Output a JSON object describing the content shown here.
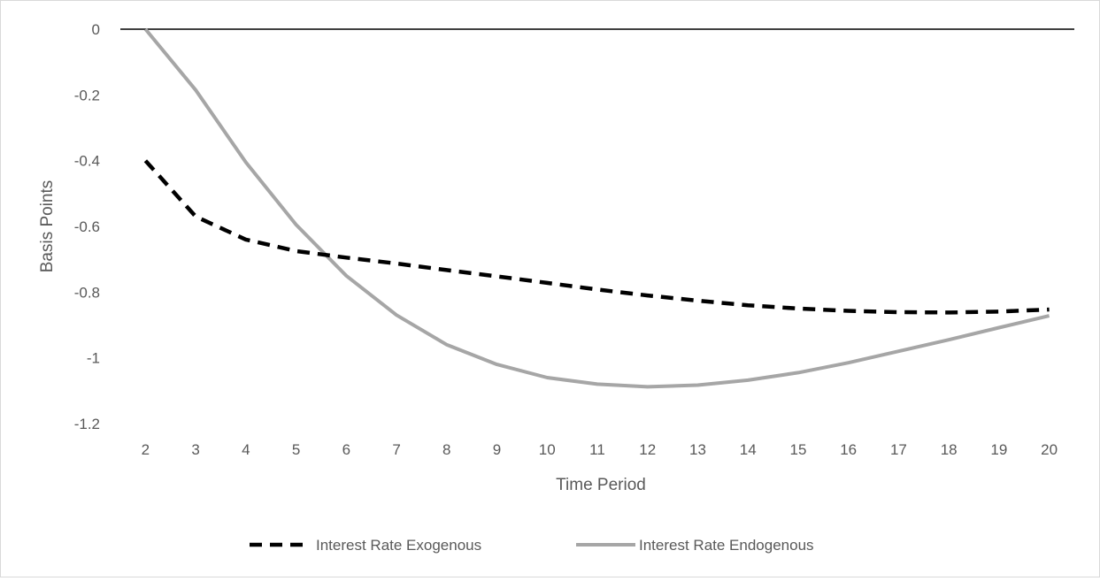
{
  "chart_data": {
    "type": "line",
    "title": "",
    "xlabel": "Time Period",
    "ylabel": "Basis Points",
    "x": [
      2,
      3,
      4,
      5,
      6,
      7,
      8,
      9,
      10,
      11,
      12,
      13,
      14,
      15,
      16,
      17,
      18,
      19,
      20
    ],
    "ylim": [
      -1.2,
      0
    ],
    "yticks": [
      "0",
      "-0.2",
      "-0.4",
      "-0.6",
      "-0.8",
      "-1",
      "-1.2"
    ],
    "ytick_values": [
      0,
      -0.2,
      -0.4,
      -0.6,
      -0.8,
      -1,
      -1.2
    ],
    "grid": false,
    "legend_position": "bottom",
    "series": [
      {
        "name": "Interest Rate Exogenous",
        "style": "dashed",
        "color": "#000000",
        "values": [
          -0.4,
          -0.57,
          -0.64,
          -0.675,
          -0.695,
          -0.713,
          -0.733,
          -0.752,
          -0.772,
          -0.792,
          -0.81,
          -0.826,
          -0.84,
          -0.85,
          -0.857,
          -0.861,
          -0.862,
          -0.859,
          -0.853
        ]
      },
      {
        "name": "Interest Rate Endogenous",
        "style": "solid",
        "color": "#a6a6a6",
        "values": [
          0.0,
          -0.185,
          -0.405,
          -0.595,
          -0.75,
          -0.87,
          -0.96,
          -1.02,
          -1.06,
          -1.08,
          -1.088,
          -1.083,
          -1.068,
          -1.045,
          -1.015,
          -0.98,
          -0.945,
          -0.908,
          -0.872
        ]
      }
    ]
  }
}
